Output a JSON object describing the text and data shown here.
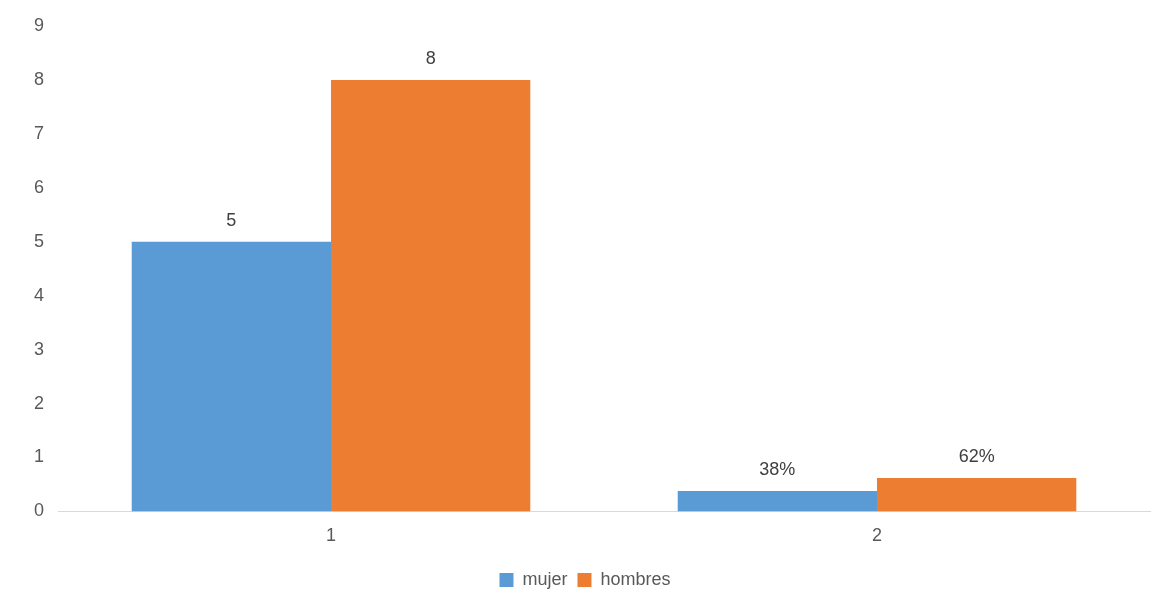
{
  "chart_data": {
    "type": "bar",
    "categories": [
      "1",
      "2"
    ],
    "series": [
      {
        "name": "mujer",
        "color": "#5b9bd5",
        "values": [
          5,
          0.38
        ],
        "value_labels": [
          "5",
          "38%"
        ]
      },
      {
        "name": "hombres",
        "color": "#ed7d31",
        "values": [
          8,
          0.62
        ],
        "value_labels": [
          "8",
          "62%"
        ]
      }
    ],
    "ylim": [
      0,
      9
    ],
    "yticks": [
      0,
      1,
      2,
      3,
      4,
      5,
      6,
      7,
      8,
      9
    ],
    "grid": false,
    "legend": "bottom"
  }
}
